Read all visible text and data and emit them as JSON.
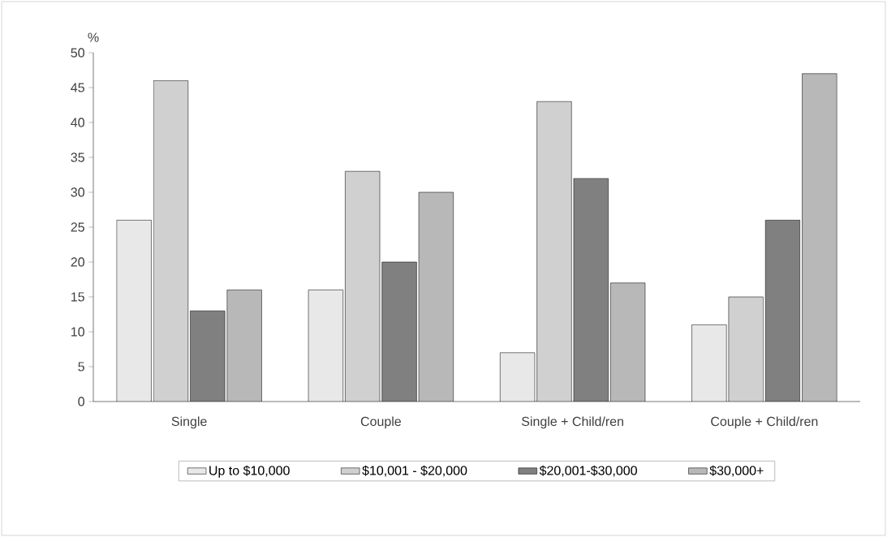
{
  "chart_data": {
    "type": "bar",
    "ylabel": "%",
    "categories": [
      "Single",
      "Couple",
      "Single + Child/ren",
      "Couple + Child/ren"
    ],
    "series": [
      {
        "name": "Up to $10,000",
        "color": "#e8e8e8",
        "values": [
          26,
          16,
          7,
          11
        ]
      },
      {
        "name": "$10,001 - $20,000",
        "color": "#d0d0d0",
        "values": [
          46,
          33,
          43,
          15
        ]
      },
      {
        "name": "$20,001-$30,000",
        "color": "#808080",
        "values": [
          13,
          20,
          32,
          26
        ]
      },
      {
        "name": "$30,000+",
        "color": "#b8b8b8",
        "values": [
          16,
          30,
          17,
          47
        ]
      }
    ],
    "ylim": [
      0,
      50
    ],
    "yticks": [
      0,
      5,
      10,
      15,
      20,
      25,
      30,
      35,
      40,
      45,
      50
    ],
    "legend": "bottom"
  }
}
